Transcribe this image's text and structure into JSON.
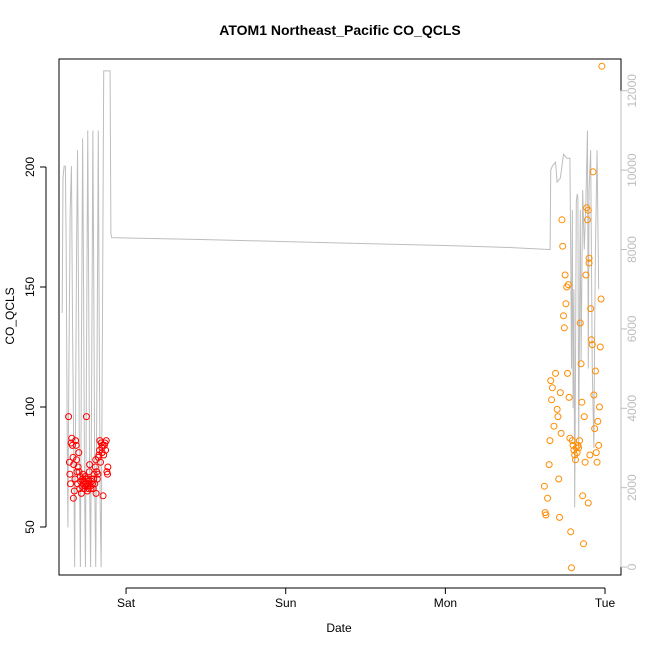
{
  "chart_data": {
    "type": "scatter",
    "title": "ATOM1 Northeast_Pacific CO_QCLS",
    "xlabel": "Date",
    "ylabel": "CO_QCLS",
    "x_unit": "days",
    "xlim": [
      0.58,
      4.1
    ],
    "ylim": [
      30,
      245
    ],
    "y2lim": [
      -200,
      12800
    ],
    "x_ticks": [
      {
        "value": 1,
        "label": "Sat"
      },
      {
        "value": 2,
        "label": "Sun"
      },
      {
        "value": 3,
        "label": "Mon"
      },
      {
        "value": 4,
        "label": "Tue"
      }
    ],
    "y_ticks": [
      50,
      100,
      150,
      200
    ],
    "y2_ticks": [
      0,
      2000,
      4000,
      6000,
      8000,
      10000,
      12000
    ],
    "grid": false,
    "colors": {
      "series1": "#ff0000",
      "series2": "#ff8c00",
      "altitude": "#bdbdbd"
    },
    "series": [
      {
        "color": "#ff0000",
        "points": [
          [
            0.64,
            96
          ],
          [
            0.645,
            77
          ],
          [
            0.648,
            72
          ],
          [
            0.652,
            68
          ],
          [
            0.656,
            85
          ],
          [
            0.66,
            87
          ],
          [
            0.664,
            84
          ],
          [
            0.668,
            79
          ],
          [
            0.67,
            62
          ],
          [
            0.672,
            76
          ],
          [
            0.676,
            65
          ],
          [
            0.68,
            70
          ],
          [
            0.684,
            86
          ],
          [
            0.688,
            84
          ],
          [
            0.69,
            78
          ],
          [
            0.692,
            73
          ],
          [
            0.696,
            68
          ],
          [
            0.7,
            75
          ],
          [
            0.704,
            81
          ],
          [
            0.706,
            73
          ],
          [
            0.71,
            66
          ],
          [
            0.714,
            71
          ],
          [
            0.716,
            69
          ],
          [
            0.72,
            64
          ],
          [
            0.724,
            67
          ],
          [
            0.728,
            70
          ],
          [
            0.73,
            72
          ],
          [
            0.734,
            68
          ],
          [
            0.736,
            66
          ],
          [
            0.74,
            69
          ],
          [
            0.742,
            71
          ],
          [
            0.746,
            67
          ],
          [
            0.748,
            68
          ],
          [
            0.75,
            70
          ],
          [
            0.752,
            96
          ],
          [
            0.756,
            67
          ],
          [
            0.758,
            65
          ],
          [
            0.76,
            68
          ],
          [
            0.762,
            70
          ],
          [
            0.764,
            66
          ],
          [
            0.768,
            69
          ],
          [
            0.77,
            73
          ],
          [
            0.772,
            76
          ],
          [
            0.776,
            67
          ],
          [
            0.78,
            66
          ],
          [
            0.784,
            69
          ],
          [
            0.786,
            70
          ],
          [
            0.79,
            68
          ],
          [
            0.794,
            66
          ],
          [
            0.798,
            70
          ],
          [
            0.8,
            72
          ],
          [
            0.804,
            68
          ],
          [
            0.808,
            75
          ],
          [
            0.81,
            78
          ],
          [
            0.812,
            64
          ],
          [
            0.816,
            73
          ],
          [
            0.82,
            70
          ],
          [
            0.824,
            72
          ],
          [
            0.826,
            79
          ],
          [
            0.83,
            80
          ],
          [
            0.834,
            82
          ],
          [
            0.836,
            86
          ],
          [
            0.84,
            77
          ],
          [
            0.844,
            85
          ],
          [
            0.848,
            83
          ],
          [
            0.85,
            81
          ],
          [
            0.852,
            84
          ],
          [
            0.856,
            63
          ],
          [
            0.86,
            80
          ],
          [
            0.864,
            84
          ],
          [
            0.868,
            85
          ],
          [
            0.872,
            82
          ],
          [
            0.876,
            86
          ],
          [
            0.88,
            73
          ],
          [
            0.884,
            72
          ],
          [
            0.886,
            75
          ]
        ]
      },
      {
        "color": "#ff8c00",
        "points": [
          [
            3.62,
            67
          ],
          [
            3.625,
            56
          ],
          [
            3.63,
            55
          ],
          [
            3.64,
            62
          ],
          [
            3.65,
            76
          ],
          [
            3.655,
            86
          ],
          [
            3.66,
            111
          ],
          [
            3.665,
            103
          ],
          [
            3.67,
            108
          ],
          [
            3.68,
            92
          ],
          [
            3.69,
            114
          ],
          [
            3.7,
            99
          ],
          [
            3.705,
            96
          ],
          [
            3.71,
            70
          ],
          [
            3.715,
            54
          ],
          [
            3.72,
            106
          ],
          [
            3.725,
            89
          ],
          [
            3.73,
            178
          ],
          [
            3.735,
            167
          ],
          [
            3.74,
            138
          ],
          [
            3.745,
            133
          ],
          [
            3.75,
            155
          ],
          [
            3.755,
            143
          ],
          [
            3.76,
            150
          ],
          [
            3.765,
            114
          ],
          [
            3.77,
            151
          ],
          [
            3.775,
            104
          ],
          [
            3.78,
            87
          ],
          [
            3.785,
            48
          ],
          [
            3.79,
            33
          ],
          [
            3.795,
            86
          ],
          [
            3.8,
            84
          ],
          [
            3.805,
            82
          ],
          [
            3.81,
            80
          ],
          [
            3.815,
            78
          ],
          [
            3.82,
            83
          ],
          [
            3.825,
            81
          ],
          [
            3.83,
            84
          ],
          [
            3.835,
            83
          ],
          [
            3.84,
            86
          ],
          [
            3.845,
            135
          ],
          [
            3.85,
            118
          ],
          [
            3.855,
            102
          ],
          [
            3.86,
            63
          ],
          [
            3.865,
            43
          ],
          [
            3.87,
            96
          ],
          [
            3.875,
            77
          ],
          [
            3.88,
            155
          ],
          [
            3.885,
            183
          ],
          [
            3.89,
            178
          ],
          [
            3.895,
            182
          ],
          [
            3.9,
            162
          ],
          [
            3.905,
            80
          ],
          [
            3.91,
            141
          ],
          [
            3.915,
            128
          ],
          [
            3.92,
            126
          ],
          [
            3.925,
            198
          ],
          [
            3.93,
            105
          ],
          [
            3.935,
            91
          ],
          [
            3.94,
            115
          ],
          [
            3.945,
            81
          ],
          [
            3.95,
            77
          ],
          [
            3.955,
            94
          ],
          [
            3.96,
            84
          ],
          [
            3.965,
            100
          ],
          [
            3.97,
            125
          ],
          [
            3.975,
            145
          ],
          [
            3.98,
            242
          ],
          [
            3.895,
            60
          ],
          [
            3.9,
            160
          ]
        ]
      }
    ],
    "altitude_series": {
      "color": "#bdbdbd",
      "points": [
        [
          0.6,
          6400
        ],
        [
          0.605,
          9800
        ],
        [
          0.612,
          10100
        ],
        [
          0.62,
          10100
        ],
        [
          0.625,
          8000
        ],
        [
          0.632,
          2800
        ],
        [
          0.636,
          1000
        ],
        [
          0.64,
          4000
        ],
        [
          0.65,
          9000
        ],
        [
          0.658,
          10100
        ],
        [
          0.665,
          6000
        ],
        [
          0.672,
          3000
        ],
        [
          0.678,
          0
        ],
        [
          0.684,
          4000
        ],
        [
          0.69,
          8000
        ],
        [
          0.696,
          10500
        ],
        [
          0.702,
          7000
        ],
        [
          0.708,
          2500
        ],
        [
          0.714,
          0
        ],
        [
          0.72,
          5000
        ],
        [
          0.728,
          10800
        ],
        [
          0.734,
          7000
        ],
        [
          0.74,
          2000
        ],
        [
          0.746,
          0
        ],
        [
          0.752,
          5000
        ],
        [
          0.76,
          11000
        ],
        [
          0.766,
          7000
        ],
        [
          0.772,
          2000
        ],
        [
          0.778,
          0
        ],
        [
          0.785,
          5000
        ],
        [
          0.792,
          11000
        ],
        [
          0.798,
          7000
        ],
        [
          0.804,
          2000
        ],
        [
          0.81,
          0
        ],
        [
          0.818,
          5000
        ],
        [
          0.826,
          11000
        ],
        [
          0.832,
          6000
        ],
        [
          0.838,
          1500
        ],
        [
          0.844,
          0
        ],
        [
          0.852,
          6000
        ],
        [
          0.86,
          12500
        ],
        [
          0.88,
          12500
        ],
        [
          0.9,
          12500
        ],
        [
          0.905,
          8400
        ],
        [
          0.91,
          8300
        ],
        [
          1.5,
          8250
        ],
        [
          2.0,
          8200
        ],
        [
          2.5,
          8150
        ],
        [
          3.0,
          8100
        ],
        [
          3.4,
          8050
        ],
        [
          3.65,
          8000
        ],
        [
          3.656,
          8000
        ],
        [
          3.66,
          10000
        ],
        [
          3.67,
          10100
        ],
        [
          3.69,
          10200
        ],
        [
          3.7,
          9700
        ],
        [
          3.72,
          9800
        ],
        [
          3.74,
          10400
        ],
        [
          3.76,
          10300
        ],
        [
          3.78,
          10300
        ],
        [
          3.785,
          8000
        ],
        [
          3.79,
          5000
        ],
        [
          3.795,
          9000
        ],
        [
          3.8,
          4000
        ],
        [
          3.805,
          7000
        ],
        [
          3.81,
          1500
        ],
        [
          3.815,
          5000
        ],
        [
          3.82,
          9200
        ],
        [
          3.826,
          9400
        ],
        [
          3.83,
          9300
        ],
        [
          3.835,
          3000
        ],
        [
          3.84,
          6000
        ],
        [
          3.845,
          9000
        ],
        [
          3.85,
          5200
        ],
        [
          3.86,
          9500
        ],
        [
          3.87,
          8000
        ],
        [
          3.88,
          9200
        ],
        [
          3.89,
          11000
        ],
        [
          3.895,
          5000
        ],
        [
          3.9,
          9500
        ],
        [
          3.91,
          10500
        ],
        [
          3.92,
          5000
        ],
        [
          3.93,
          3000
        ],
        [
          3.935,
          6000
        ],
        [
          3.94,
          8000
        ],
        [
          3.95,
          10500
        ],
        [
          3.96,
          7000
        ]
      ]
    }
  }
}
